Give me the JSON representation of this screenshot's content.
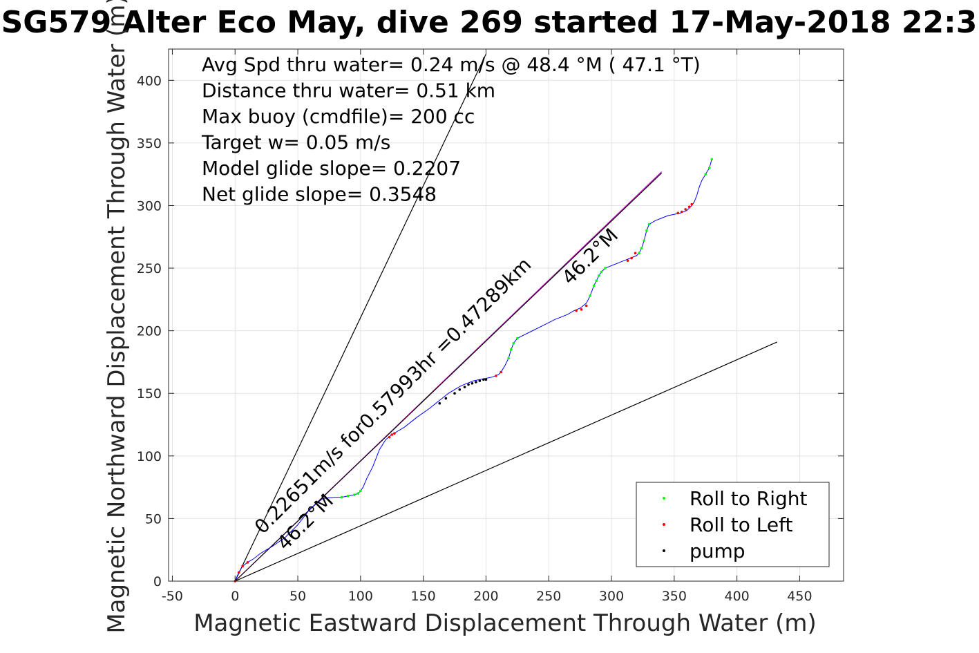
{
  "chart_data": {
    "type": "line",
    "title": "SG579 Alter Eco May, dive 269 started 17-May-2018 22:3",
    "xlabel": "Magnetic Eastward Displacement Through Water (m)",
    "ylabel": "Magnetic Northward Displacement Through Water (m)",
    "xlim": [
      -53,
      485
    ],
    "ylim": [
      0,
      425
    ],
    "xticks": [
      -50,
      0,
      50,
      100,
      150,
      200,
      250,
      300,
      350,
      400,
      450
    ],
    "yticks": [
      0,
      50,
      100,
      150,
      200,
      250,
      300,
      350,
      400
    ],
    "grid": true,
    "text_lines": [
      "Avg Spd thru water=  0.24 m/s @  48.4 °M ( 47.1 °T)",
      "Distance thru water=  0.51 km",
      "Max buoy (cmdfile)= 200 cc",
      "Target w= 0.05 m/s",
      "Model glide slope= 0.2207",
      "Net glide slope= 0.3548"
    ],
    "rotated_labels": [
      {
        "text": "0.22651m/s for0.57993hr =0.47289km",
        "x": 22,
        "y": 37
      },
      {
        "text": "46.2°M",
        "x": 40,
        "y": 24
      },
      {
        "text": "46.2°M",
        "x": 267,
        "y": 236
      }
    ],
    "track": {
      "color": "#0000ff",
      "x": [
        0,
        3,
        6,
        10,
        15,
        20,
        30,
        40,
        50,
        60,
        70,
        80,
        85,
        90,
        95,
        98,
        100,
        102,
        105,
        110,
        115,
        120,
        125,
        135,
        145,
        155,
        160,
        165,
        170,
        175,
        180,
        185,
        190,
        195,
        200,
        205,
        210,
        212,
        215,
        218,
        220,
        222,
        225,
        235,
        245,
        255,
        265,
        270,
        275,
        280,
        283,
        286,
        288,
        290,
        292,
        295,
        300,
        305,
        310,
        315,
        320,
        322,
        324,
        326,
        328,
        330,
        335,
        340,
        345,
        350,
        355,
        360,
        362,
        364,
        366,
        368,
        370,
        372,
        375,
        378,
        380
      ],
      "y": [
        0,
        7,
        12,
        15,
        18,
        22,
        28,
        35,
        45,
        58,
        66,
        67,
        67,
        68,
        69,
        70,
        72,
        75,
        82,
        92,
        105,
        113,
        117,
        123,
        131,
        138,
        142,
        146,
        150,
        153,
        156,
        158,
        160,
        161,
        162,
        163,
        165,
        167,
        172,
        178,
        185,
        190,
        194,
        199,
        204,
        209,
        213,
        216,
        218,
        222,
        228,
        236,
        240,
        244,
        247,
        250,
        252,
        254,
        256,
        258,
        260,
        262,
        266,
        272,
        280,
        285,
        288,
        290,
        292,
        293,
        294,
        296,
        298,
        300,
        303,
        308,
        315,
        320,
        325,
        330,
        337
      ]
    },
    "glide_lines": [
      {
        "x": [
          0,
          340
        ],
        "y": [
          0,
          327
        ],
        "color": "#cc00cc"
      },
      {
        "x": [
          0,
          340
        ],
        "y": [
          0,
          326
        ],
        "color": "#000000"
      },
      {
        "x": [
          0,
          200
        ],
        "y": [
          0,
          421
        ],
        "color": "#000000"
      },
      {
        "x": [
          0,
          432
        ],
        "y": [
          0,
          191
        ],
        "color": "#000000"
      }
    ],
    "series": [
      {
        "name": "Roll to Right",
        "color": "#00ff00",
        "x": [
          85,
          90,
          95,
          98,
          100,
          218,
          220,
          222,
          225,
          283,
          286,
          288,
          290,
          292,
          295,
          322,
          324,
          326,
          328,
          330,
          375,
          378,
          380
        ],
        "y": [
          67,
          68,
          69,
          70,
          72,
          178,
          185,
          190,
          194,
          228,
          236,
          240,
          244,
          247,
          250,
          262,
          266,
          272,
          280,
          285,
          325,
          330,
          337
        ]
      },
      {
        "name": "Roll to Left",
        "color": "#ff0000",
        "x": [
          0,
          3,
          6,
          10,
          123,
          125,
          127,
          208,
          212,
          272,
          276,
          280,
          313,
          316,
          319,
          353,
          356,
          359,
          362,
          364
        ],
        "y": [
          0,
          7,
          12,
          15,
          115,
          117,
          118,
          164,
          167,
          216,
          217,
          220,
          256,
          258,
          262,
          294,
          295,
          297,
          299,
          301
        ]
      },
      {
        "name": "pump",
        "color": "#000000",
        "x": [
          163,
          168,
          175,
          179,
          183,
          186,
          189,
          192,
          195,
          198,
          200
        ],
        "y": [
          142,
          146,
          150,
          153,
          155,
          157,
          158,
          159,
          160,
          161,
          161
        ]
      }
    ]
  }
}
